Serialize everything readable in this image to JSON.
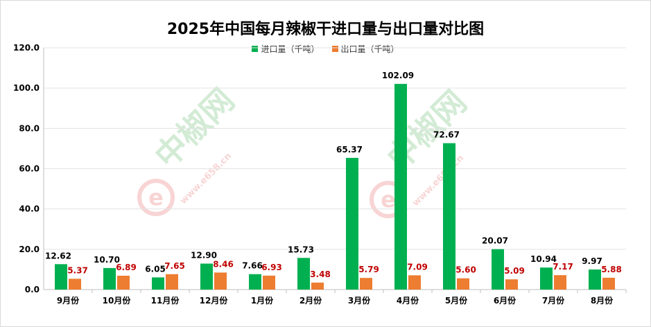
{
  "chart_data": {
    "type": "bar",
    "title": "2025年中国每月辣椒干进口量与出口量对比图",
    "categories": [
      "9月份",
      "10月份",
      "11月份",
      "12月份",
      "1月份",
      "2月份",
      "3月份",
      "4月份",
      "5月份",
      "6月份",
      "7月份",
      "8月份"
    ],
    "series": [
      {
        "name": "进口量（千吨）",
        "color": "#00b050",
        "values": [
          12.62,
          10.7,
          6.05,
          12.9,
          7.66,
          15.73,
          65.37,
          102.09,
          72.67,
          20.07,
          10.94,
          9.97
        ],
        "labels": [
          "12.62",
          "10.70",
          "6.05",
          "12.90",
          "7.66",
          "15.73",
          "65.37",
          "102.09",
          "72.67",
          "20.07",
          "10.94",
          "9.97"
        ],
        "label_color": "#000000"
      },
      {
        "name": "出口量（千吨）",
        "color": "#ed7d31",
        "values": [
          5.37,
          6.89,
          7.65,
          8.46,
          6.93,
          3.48,
          5.79,
          7.09,
          5.6,
          5.09,
          7.17,
          5.88
        ],
        "labels": [
          "5.37",
          "6.89",
          "7.65",
          "8.46",
          "6.93",
          "3.48",
          "5.79",
          "7.09",
          "5.60",
          "5.09",
          "7.17",
          "5.88"
        ],
        "label_color": "#c00000"
      }
    ],
    "ylim": [
      0,
      120
    ],
    "yticks": [
      "0.0",
      "20.0",
      "40.0",
      "60.0",
      "80.0",
      "100.0",
      "120.0"
    ],
    "grid": true,
    "legend_position": "top-center"
  },
  "watermark": {
    "brand": "中椒网",
    "url": "www.e658.cn",
    "logo_letter": "e"
  }
}
